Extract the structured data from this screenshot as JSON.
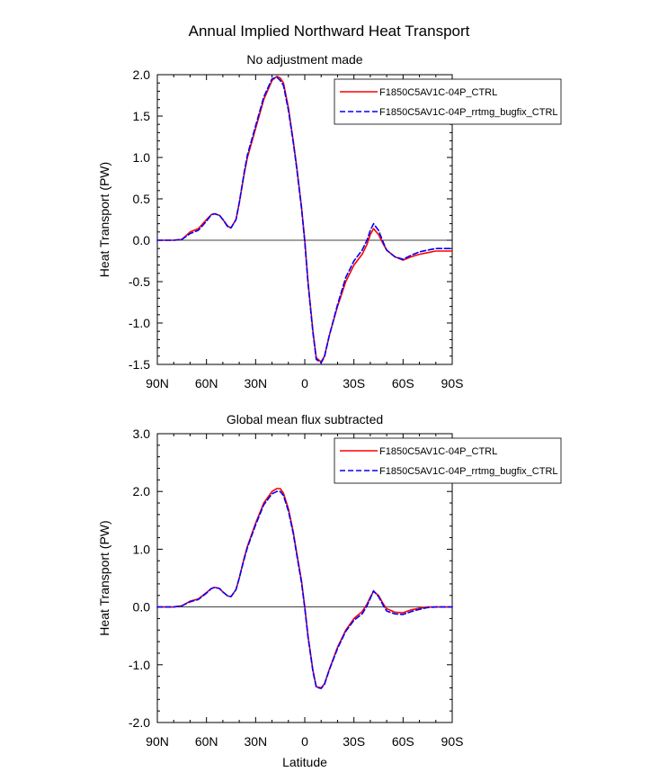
{
  "figure": {
    "title": "Annual Implied Northward Heat Transport"
  },
  "chart_data": [
    {
      "type": "line",
      "title": "No adjustment made",
      "xlabel": "",
      "ylabel": "Heat Transport (PW)",
      "xlim": [
        90,
        -90
      ],
      "ylim": [
        -1.5,
        2.0
      ],
      "x_ticks": [
        90,
        60,
        30,
        0,
        -30,
        -60,
        -90
      ],
      "x_tick_labels": [
        "90N",
        "60N",
        "30N",
        "0",
        "30S",
        "60S",
        "90S"
      ],
      "y_ticks": [
        2.0,
        1.5,
        1.0,
        0.5,
        0.0,
        -0.5,
        -1.0,
        -1.5
      ],
      "y_tick_labels": [
        "2.0",
        "1.5",
        "1.0",
        "0.5",
        "0.0",
        "-0.5",
        "-1.0",
        "-1.5"
      ],
      "legend_position": "top-right",
      "zero_line": true,
      "x": [
        90,
        85,
        80,
        75,
        70,
        65,
        60,
        57,
        55,
        52,
        50,
        47,
        45,
        42,
        40,
        37,
        35,
        30,
        25,
        20,
        17,
        15,
        13,
        10,
        7,
        5,
        2,
        0,
        -2,
        -5,
        -7,
        -10,
        -12,
        -15,
        -20,
        -25,
        -30,
        -35,
        -38,
        -40,
        -42,
        -45,
        -48,
        -50,
        -55,
        -60,
        -65,
        -70,
        -75,
        -80,
        -85,
        -90
      ],
      "series": [
        {
          "name": "F1850C5AV1C-04P_CTRL",
          "color": "#ff0000",
          "dash": "solid",
          "values": [
            0.0,
            0.0,
            0.0,
            0.01,
            0.1,
            0.14,
            0.25,
            0.31,
            0.32,
            0.3,
            0.25,
            0.17,
            0.15,
            0.25,
            0.45,
            0.8,
            1.0,
            1.35,
            1.7,
            1.93,
            1.98,
            1.96,
            1.9,
            1.6,
            1.2,
            0.9,
            0.4,
            0.0,
            -0.5,
            -1.1,
            -1.42,
            -1.47,
            -1.4,
            -1.15,
            -0.8,
            -0.5,
            -0.3,
            -0.17,
            -0.05,
            0.07,
            0.14,
            0.07,
            -0.05,
            -0.12,
            -0.2,
            -0.24,
            -0.2,
            -0.17,
            -0.15,
            -0.13,
            -0.13,
            -0.13
          ]
        },
        {
          "name": "F1850C5AV1C-04P_rrtmg_bugfix_CTRL",
          "color": "#0000ff",
          "dash": "dashed",
          "values": [
            0.0,
            0.0,
            0.0,
            0.01,
            0.08,
            0.12,
            0.23,
            0.31,
            0.32,
            0.3,
            0.25,
            0.16,
            0.15,
            0.25,
            0.45,
            0.82,
            1.03,
            1.38,
            1.73,
            1.95,
            1.97,
            1.93,
            1.87,
            1.57,
            1.18,
            0.88,
            0.38,
            -0.02,
            -0.52,
            -1.12,
            -1.44,
            -1.48,
            -1.41,
            -1.15,
            -0.78,
            -0.45,
            -0.25,
            -0.12,
            0.0,
            0.12,
            0.2,
            0.12,
            -0.03,
            -0.12,
            -0.2,
            -0.23,
            -0.18,
            -0.14,
            -0.12,
            -0.1,
            -0.1,
            -0.1
          ]
        }
      ]
    },
    {
      "type": "line",
      "title": "Global mean flux subtracted",
      "xlabel": "Latitude",
      "ylabel": "Heat Transport (PW)",
      "xlim": [
        90,
        -90
      ],
      "ylim": [
        -2.0,
        3.0
      ],
      "x_ticks": [
        90,
        60,
        30,
        0,
        -30,
        -60,
        -90
      ],
      "x_tick_labels": [
        "90N",
        "60N",
        "30N",
        "0",
        "30S",
        "60S",
        "90S"
      ],
      "y_ticks": [
        3.0,
        2.0,
        1.0,
        0.0,
        -1.0,
        -2.0
      ],
      "y_tick_labels": [
        "3.0",
        "2.0",
        "1.0",
        "0.0",
        "-1.0",
        "-2.0"
      ],
      "legend_position": "top-right",
      "zero_line": true,
      "x": [
        90,
        85,
        80,
        75,
        70,
        65,
        60,
        57,
        55,
        52,
        50,
        47,
        45,
        42,
        40,
        37,
        35,
        30,
        25,
        20,
        17,
        15,
        13,
        10,
        7,
        5,
        2,
        0,
        -2,
        -5,
        -7,
        -10,
        -12,
        -15,
        -20,
        -25,
        -30,
        -35,
        -38,
        -40,
        -42,
        -45,
        -48,
        -50,
        -55,
        -60,
        -65,
        -70,
        -75,
        -80,
        -85,
        -90
      ],
      "series": [
        {
          "name": "F1850C5AV1C-04P_CTRL",
          "color": "#ff0000",
          "dash": "solid",
          "values": [
            0.0,
            0.0,
            0.0,
            0.02,
            0.1,
            0.14,
            0.25,
            0.32,
            0.34,
            0.32,
            0.26,
            0.19,
            0.18,
            0.3,
            0.5,
            0.85,
            1.05,
            1.45,
            1.8,
            2.0,
            2.05,
            2.05,
            1.97,
            1.7,
            1.3,
            0.95,
            0.45,
            0.0,
            -0.5,
            -1.1,
            -1.38,
            -1.4,
            -1.33,
            -1.08,
            -0.7,
            -0.4,
            -0.2,
            -0.08,
            0.05,
            0.17,
            0.27,
            0.2,
            0.05,
            -0.03,
            -0.09,
            -0.1,
            -0.05,
            -0.02,
            0.0,
            0.0,
            0.0,
            0.0
          ]
        },
        {
          "name": "F1850C5AV1C-04P_rrtmg_bugfix_CTRL",
          "color": "#0000ff",
          "dash": "dashed",
          "values": [
            0.0,
            0.0,
            0.0,
            0.02,
            0.09,
            0.13,
            0.24,
            0.32,
            0.34,
            0.32,
            0.26,
            0.19,
            0.18,
            0.3,
            0.5,
            0.83,
            1.03,
            1.42,
            1.77,
            1.96,
            2.0,
            2.0,
            1.93,
            1.66,
            1.27,
            0.92,
            0.42,
            -0.02,
            -0.52,
            -1.12,
            -1.39,
            -1.41,
            -1.34,
            -1.09,
            -0.72,
            -0.42,
            -0.23,
            -0.12,
            0.02,
            0.15,
            0.28,
            0.18,
            0.02,
            -0.07,
            -0.12,
            -0.13,
            -0.08,
            -0.04,
            -0.01,
            0.0,
            0.0,
            0.0
          ]
        }
      ]
    }
  ]
}
